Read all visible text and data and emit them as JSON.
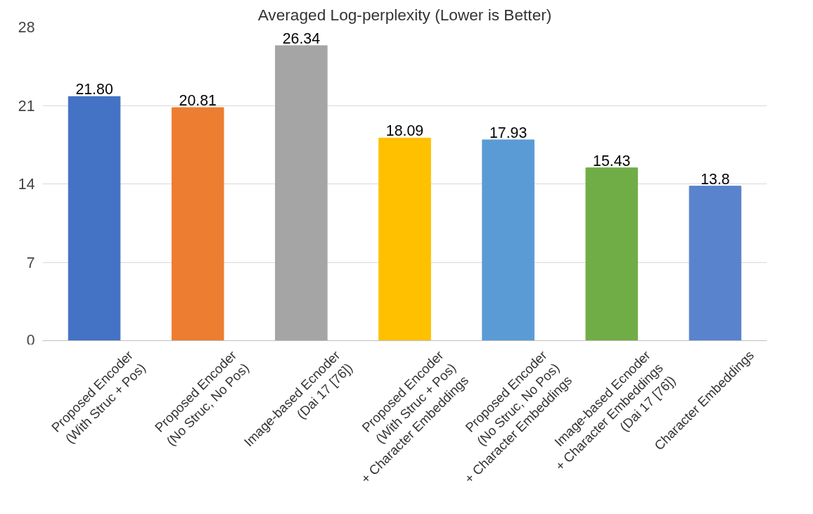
{
  "chart_data": {
    "type": "bar",
    "title": "Averaged Log-perplexity (Lower is Better)",
    "categories": [
      "Proposed Encoder\n(With Struc + Pos)",
      "Proposed Encoder\n(No Struc, No Pos)",
      "Image-based Ecnoder\n(Dai 17 [76])",
      "Proposed Encoder\n(With Struc + Pos)\n+ Character Embeddings",
      "Proposed Encoder\n(No Struc, No Pos)\n+ Character Embeddings",
      "Image-based Ecnoder\n+ Character Embeddings\n(Dai 17 [76])",
      "Character Embeddings"
    ],
    "values": [
      21.8,
      20.81,
      26.34,
      18.09,
      17.93,
      15.43,
      13.8
    ],
    "value_labels": [
      "21.80",
      "20.81",
      "26.34",
      "18.09",
      "17.93",
      "15.43",
      "13.8"
    ],
    "colors": [
      "#4472c4",
      "#ed7d31",
      "#a5a5a5",
      "#ffc000",
      "#5b9bd5",
      "#70ad47",
      "#5983cc"
    ],
    "ylim": [
      0,
      28
    ],
    "yticks": [
      0,
      7,
      14,
      21,
      28
    ],
    "grid": "y"
  }
}
